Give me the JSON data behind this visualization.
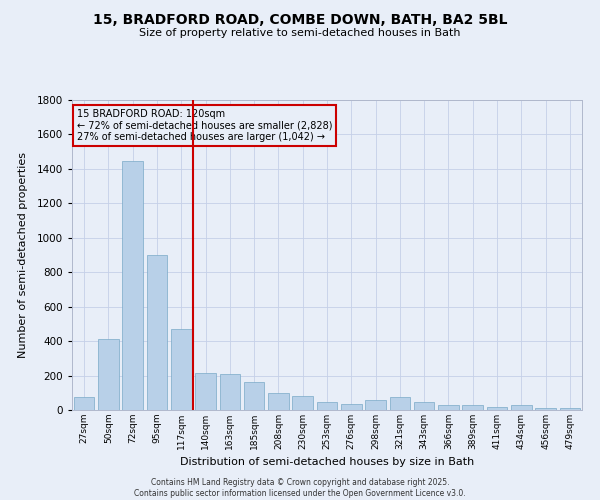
{
  "title_line1": "15, BRADFORD ROAD, COMBE DOWN, BATH, BA2 5BL",
  "title_line2": "Size of property relative to semi-detached houses in Bath",
  "xlabel": "Distribution of semi-detached houses by size in Bath",
  "ylabel": "Number of semi-detached properties",
  "property_label": "15 BRADFORD ROAD: 120sqm",
  "pct_smaller": "72% of semi-detached houses are smaller (2,828)",
  "pct_larger": "27% of semi-detached houses are larger (1,042)",
  "bar_color": "#b8d0e8",
  "bar_edge_color": "#7aaac8",
  "vline_color": "#cc0000",
  "annotation_box_color": "#cc0000",
  "bg_color": "#e8eef8",
  "grid_color": "#c5d0e8",
  "categories": [
    "27sqm",
    "50sqm",
    "72sqm",
    "95sqm",
    "117sqm",
    "140sqm",
    "163sqm",
    "185sqm",
    "208sqm",
    "230sqm",
    "253sqm",
    "276sqm",
    "298sqm",
    "321sqm",
    "343sqm",
    "366sqm",
    "389sqm",
    "411sqm",
    "434sqm",
    "456sqm",
    "479sqm"
  ],
  "values": [
    75,
    415,
    1445,
    900,
    470,
    215,
    210,
    165,
    100,
    80,
    45,
    35,
    60,
    75,
    45,
    30,
    30,
    15,
    30,
    10,
    10
  ],
  "ylim": [
    0,
    1800
  ],
  "yticks": [
    0,
    200,
    400,
    600,
    800,
    1000,
    1200,
    1400,
    1600,
    1800
  ],
  "vline_x_pos": 4.5,
  "footnote1": "Contains HM Land Registry data © Crown copyright and database right 2025.",
  "footnote2": "Contains public sector information licensed under the Open Government Licence v3.0."
}
